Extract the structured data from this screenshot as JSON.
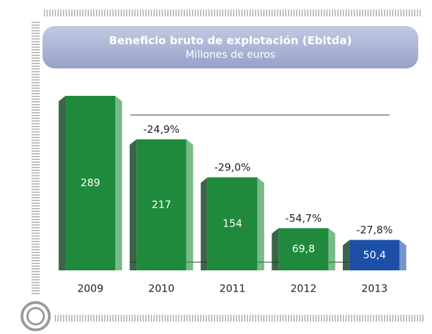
{
  "chart_data": {
    "type": "bar",
    "title": "Beneficio bruto de explotación (Ebitda)",
    "subtitle": "Millones de euros",
    "categories": [
      "2009",
      "2010",
      "2011",
      "2012",
      "2013"
    ],
    "values": [
      289,
      217,
      154,
      69.8,
      50.4
    ],
    "value_labels": [
      "289",
      "217",
      "154",
      "69,8",
      "50,4"
    ],
    "colors": [
      "#1f8a3c",
      "#1f8a3c",
      "#1f8a3c",
      "#1f8a3c",
      "#1d4fa8"
    ],
    "annotations": [
      "-24,9%",
      "-29,0%",
      "-54,7%",
      "-27,8%"
    ]
  }
}
